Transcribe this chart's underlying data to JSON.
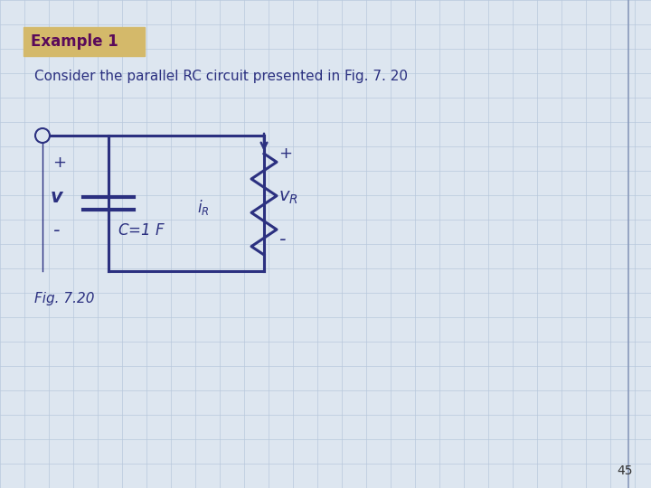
{
  "title": "Example 1",
  "title_bg": "#d4b96a",
  "title_color": "#5a0a5a",
  "subtitle": "Consider the parallel RC circuit presented in Fig. 7. 20",
  "subtitle_color": "#2b3080",
  "fig_label": "Fig. 7.20",
  "page_number": "45",
  "bg_color": "#dde6f0",
  "circuit_color": "#2b3080",
  "grid_color": "#b8c8dc",
  "right_border_color": "#8899bb",
  "font_size_title": 12,
  "font_size_subtitle": 11,
  "font_size_labels": 11,
  "font_size_circuit": 12
}
